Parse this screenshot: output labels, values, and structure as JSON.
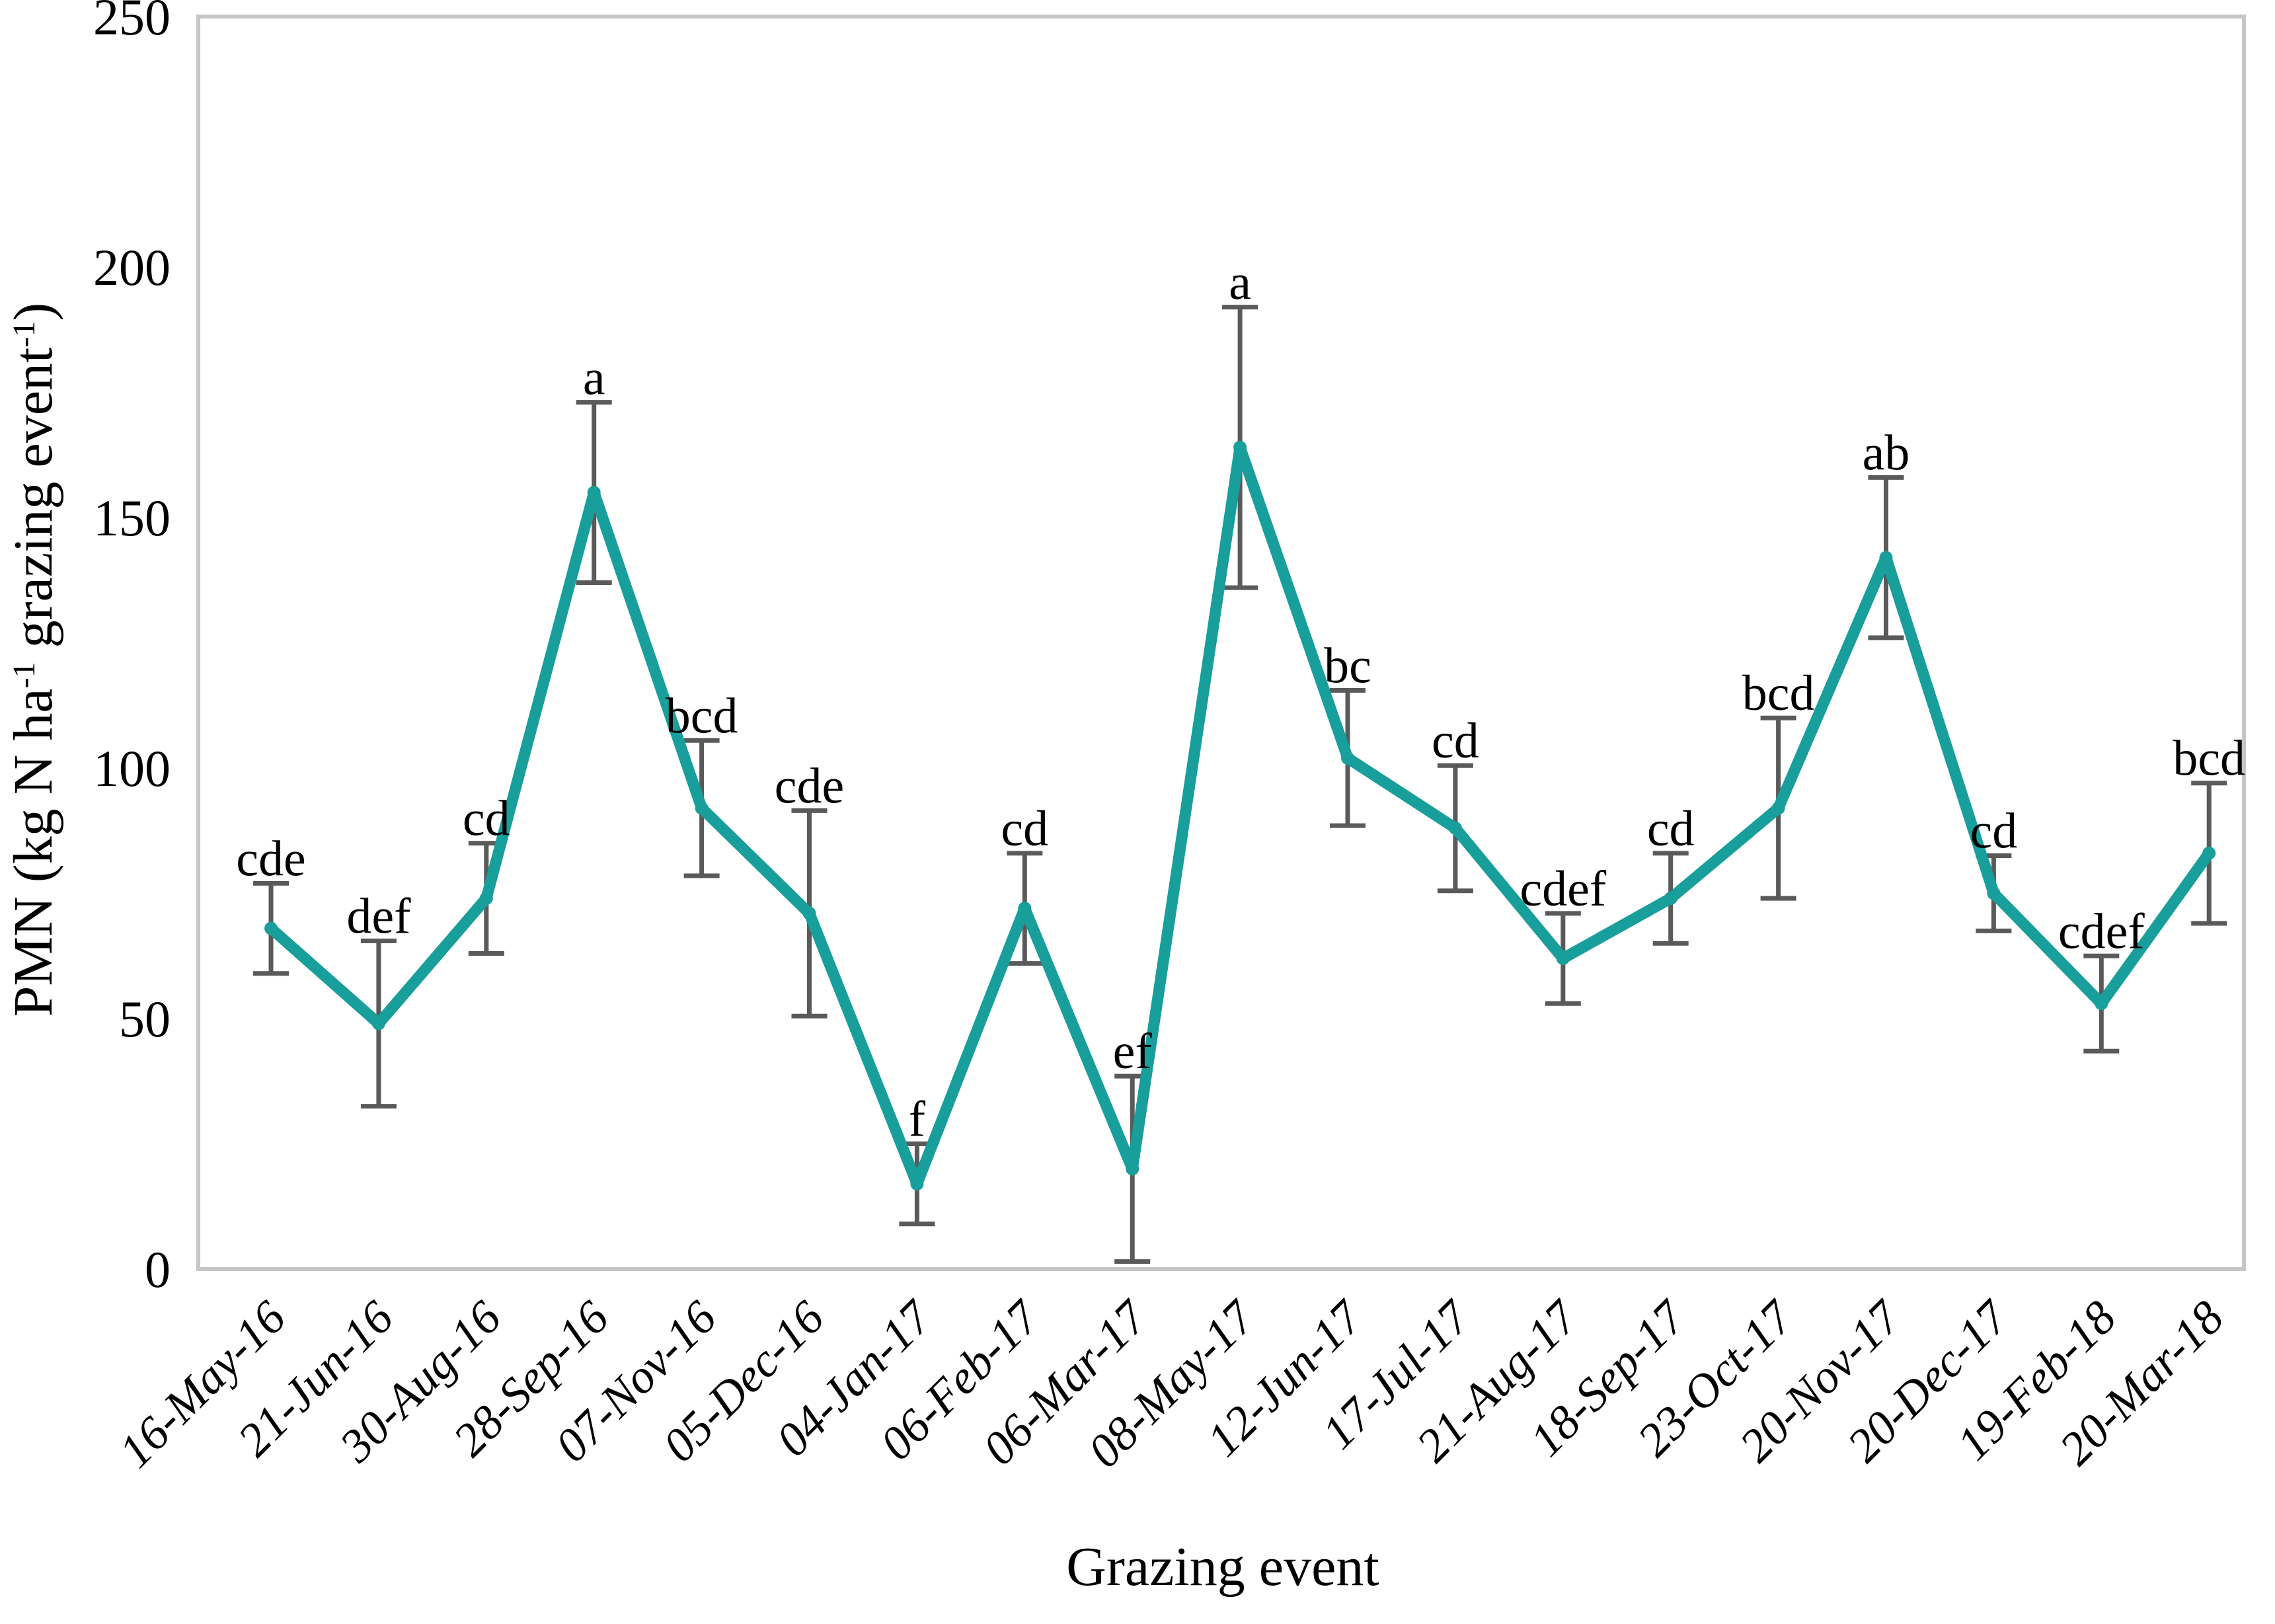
{
  "chart_data": {
    "type": "line",
    "title": "",
    "xlabel": "Grazing event",
    "ylabel_plain": "PMN (kg N ha-1 grazing event-1)",
    "ylabel_parts": [
      {
        "text": "PMN (kg N ha",
        "sup": false
      },
      {
        "text": "-1",
        "sup": true
      },
      {
        "text": " grazing event",
        "sup": false
      },
      {
        "text": "-1",
        "sup": true
      },
      {
        "text": ")",
        "sup": false
      }
    ],
    "ylim": [
      0,
      250
    ],
    "y_ticks": [
      0,
      50,
      100,
      150,
      200,
      250
    ],
    "grid": false,
    "legend_position": "none",
    "categories": [
      "16-May-16",
      "21-Jun-16",
      "30-Aug-16",
      "28-Sep-16",
      "07-Nov-16",
      "05-Dec-16",
      "04-Jan-17",
      "06-Feb-17",
      "06-Mar-17",
      "08-May-17",
      "12-Jun-17",
      "17-Jul-17",
      "21-Aug-17",
      "18-Sep-17",
      "23-Oct-17",
      "20-Nov-17",
      "20-Dec-17",
      "19-Feb-18",
      "20-Mar-18"
    ],
    "series": [
      {
        "name": "PMN",
        "values": [
          68,
          49,
          74,
          155,
          92,
          71,
          17,
          72,
          20,
          164,
          102,
          88,
          62,
          74,
          92,
          142,
          75,
          53,
          83
        ],
        "errors": [
          9,
          16.5,
          11,
          18,
          13.5,
          20.5,
          8,
          11,
          18.5,
          28,
          13.5,
          12.5,
          9,
          9,
          18,
          16,
          7.5,
          9.5,
          14
        ],
        "letters": [
          "cde",
          "def",
          "cd",
          "a",
          "bcd",
          "cde",
          "f",
          "cd",
          "ef",
          "a",
          "bc",
          "cd",
          "cdef",
          "cd",
          "bcd",
          "ab",
          "cd",
          "cdef",
          "bcd"
        ]
      }
    ],
    "colors": {
      "line": "#189E9B",
      "error_bar": "#5A5A5A",
      "frame": "#C6C6C6",
      "text": "#000000",
      "background": "#FFFFFF"
    }
  }
}
